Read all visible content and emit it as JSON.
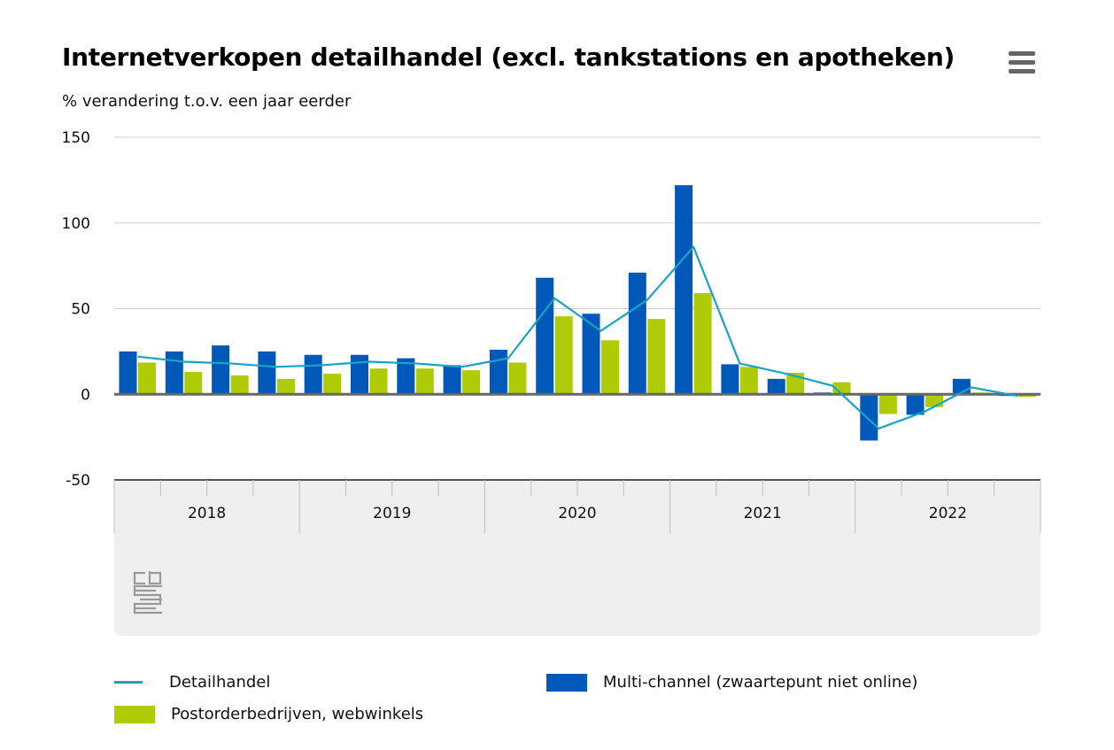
{
  "header": {
    "title": "Internetverkopen detailhandel (excl. tankstations en apotheken)",
    "subtitle": "% verandering t.o.v. een jaar eerder",
    "menu_icon": "hamburger-menu-icon"
  },
  "colors": {
    "multi_channel": "#0058b8",
    "postorder": "#afcb05",
    "detailhandel": "#1aa2c7",
    "grid": "#cfcfcf",
    "zero_line": "#666666",
    "axis_band": "#efefef"
  },
  "chart_data": {
    "type": "bar",
    "title": "Internetverkopen detailhandel (excl. tankstations en apotheken)",
    "ylabel": "% verandering t.o.v. een jaar eerder",
    "ylim": [
      -50,
      150
    ],
    "yticks": [
      "150",
      "100",
      "50",
      "0",
      "-50"
    ],
    "ytick_values": [
      150,
      100,
      50,
      0,
      -50
    ],
    "grid": true,
    "year_labels": [
      "2018",
      "2019",
      "2020",
      "2021",
      "2022"
    ],
    "categories": [
      "2018 K1",
      "2018 K2",
      "2018 K3",
      "2018 K4",
      "2019 K1",
      "2019 K2",
      "2019 K3",
      "2019 K4",
      "2020 K1",
      "2020 K2",
      "2020 K3",
      "2020 K4",
      "2021 K1",
      "2021 K2",
      "2021 K3",
      "2021 K4",
      "2022 K1",
      "2022 K2",
      "2022 K3",
      "2022 K4"
    ],
    "series": [
      {
        "name": "Multi-channel (zwaartepunt niet online)",
        "kind": "bar",
        "values": [
          25,
          25,
          28.5,
          25,
          23,
          23,
          21,
          17,
          26,
          68,
          47,
          71,
          122,
          17.5,
          9,
          1,
          -27,
          -12,
          9,
          -1
        ]
      },
      {
        "name": "Postorderbedrijven, webwinkels",
        "kind": "bar",
        "values": [
          18.5,
          13,
          11,
          9,
          12,
          15,
          15,
          14,
          18.5,
          45.5,
          31.5,
          44,
          59,
          16,
          12.5,
          7,
          -11.5,
          -7.5,
          1,
          -1.5
        ]
      },
      {
        "name": "Detailhandel",
        "kind": "line",
        "values": [
          22,
          19,
          18,
          16,
          17,
          19,
          18,
          16,
          21,
          56,
          37,
          55,
          86,
          18,
          12,
          5,
          -20,
          -10,
          4,
          -1
        ]
      }
    ]
  },
  "legend": {
    "detailhandel": "Detailhandel",
    "multi_channel": "Multi-channel (zwaartepunt niet online)",
    "postorder": "Postorderbedrijven, webwinkels"
  },
  "logo_text": "cbs"
}
